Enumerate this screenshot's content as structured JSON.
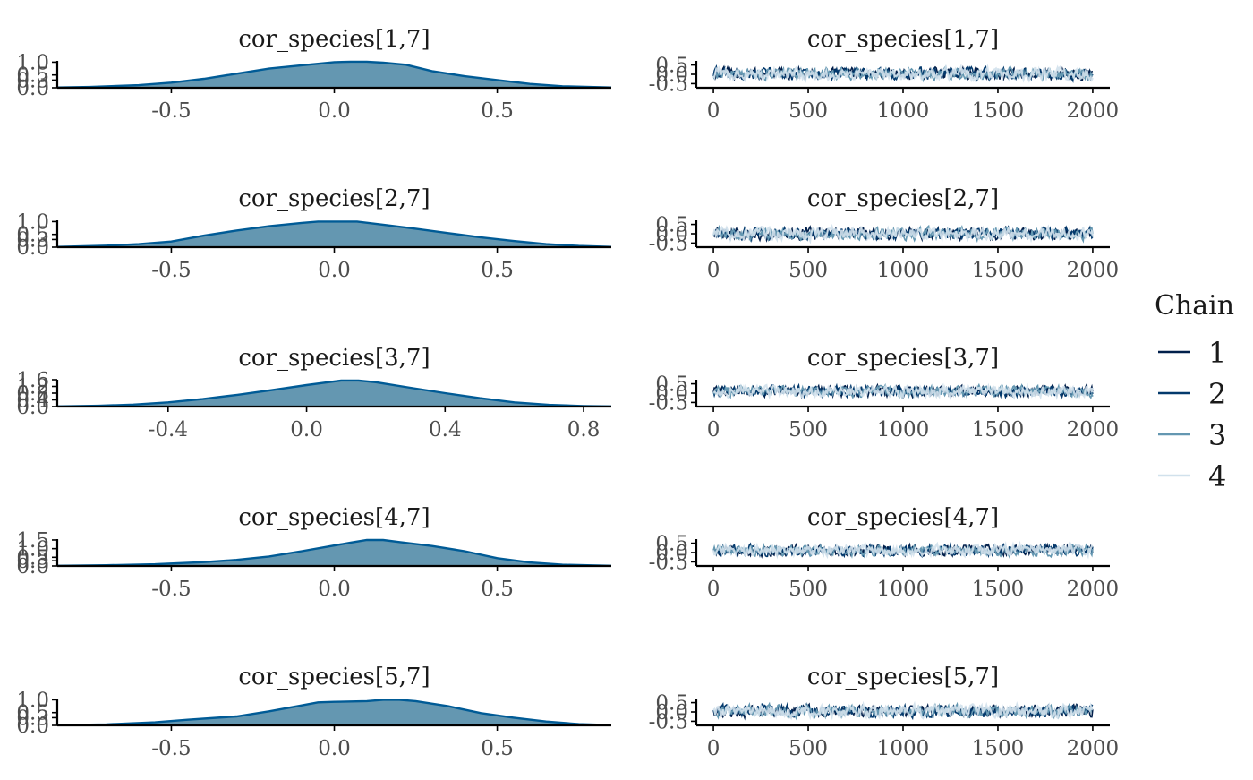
{
  "chart_data": [
    {
      "type": "area",
      "title": "cor_species[1,7]",
      "xlim": [
        -0.85,
        0.85
      ],
      "x_ticks": [
        -0.5,
        0.0,
        0.5
      ],
      "x_tick_labels": [
        "-0.5",
        "0.0",
        "0.5"
      ],
      "ylim": [
        0,
        1.05
      ],
      "y_ticks": [
        0.0,
        0.3,
        0.5,
        1.0
      ],
      "y_tick_labels": [
        "0.0",
        "0.3",
        "0.5",
        "1.0"
      ],
      "x": [
        -0.85,
        -0.75,
        -0.6,
        -0.5,
        -0.4,
        -0.3,
        -0.2,
        -0.1,
        0.0,
        0.05,
        0.1,
        0.15,
        0.22,
        0.3,
        0.4,
        0.5,
        0.6,
        0.7,
        0.85
      ],
      "y": [
        0.01,
        0.03,
        0.1,
        0.2,
        0.35,
        0.55,
        0.75,
        0.88,
        1.0,
        1.02,
        1.02,
        0.98,
        0.9,
        0.65,
        0.45,
        0.3,
        0.15,
        0.06,
        0.01
      ]
    },
    {
      "type": "line",
      "title": "cor_species[1,7]",
      "xlim": [
        -90,
        2090
      ],
      "x_ticks": [
        0,
        500,
        1000,
        1500,
        2000
      ],
      "x_tick_labels": [
        "0",
        "500",
        "1000",
        "1500",
        "2000"
      ],
      "ylim": [
        -0.72,
        0.72
      ],
      "y_ticks": [
        -0.5,
        0.0,
        0.5
      ],
      "y_tick_labels": [
        "-0.5",
        "0.0",
        "0.5"
      ],
      "n_iter": 2000,
      "series_mean": 0.03,
      "series_spread": 0.5
    },
    {
      "type": "area",
      "title": "cor_species[2,7]",
      "xlim": [
        -0.85,
        0.85
      ],
      "x_ticks": [
        -0.5,
        0.0,
        0.5
      ],
      "x_tick_labels": [
        "-0.5",
        "0.0",
        "0.5"
      ],
      "ylim": [
        0,
        1.05
      ],
      "y_ticks": [
        0.0,
        0.3,
        0.5,
        1.0
      ],
      "y_tick_labels": [
        "0.0",
        "0.3",
        "0.5",
        "1.0"
      ],
      "x": [
        -0.85,
        -0.7,
        -0.6,
        -0.5,
        -0.4,
        -0.3,
        -0.2,
        -0.1,
        -0.05,
        0.0,
        0.07,
        0.15,
        0.25,
        0.35,
        0.45,
        0.55,
        0.65,
        0.75,
        0.85
      ],
      "y": [
        0.01,
        0.06,
        0.12,
        0.22,
        0.45,
        0.65,
        0.82,
        0.95,
        1.0,
        1.0,
        1.0,
        0.88,
        0.72,
        0.55,
        0.38,
        0.24,
        0.12,
        0.05,
        0.01
      ]
    },
    {
      "type": "line",
      "title": "cor_species[2,7]",
      "xlim": [
        -90,
        2090
      ],
      "x_ticks": [
        0,
        500,
        1000,
        1500,
        2000
      ],
      "x_tick_labels": [
        "0",
        "500",
        "1000",
        "1500",
        "2000"
      ],
      "ylim": [
        -0.72,
        0.72
      ],
      "y_ticks": [
        -0.5,
        0.0,
        0.5
      ],
      "y_tick_labels": [
        "-0.5",
        "0.0",
        "0.5"
      ],
      "n_iter": 2000,
      "series_mean": 0.0,
      "series_spread": 0.5
    },
    {
      "type": "area",
      "title": "cor_species[3,7]",
      "xlim": [
        -0.72,
        0.88
      ],
      "x_ticks": [
        -0.4,
        0.0,
        0.4,
        0.8
      ],
      "x_tick_labels": [
        "-0.4",
        "0.0",
        "0.4",
        "0.8"
      ],
      "ylim": [
        0,
        1.6
      ],
      "y_ticks": [
        0.0,
        0.4,
        0.8,
        1.2,
        1.6
      ],
      "y_tick_labels": [
        "0.0",
        "0.4",
        "0.8",
        "1.2",
        "1.6"
      ],
      "x": [
        -0.72,
        -0.6,
        -0.5,
        -0.4,
        -0.3,
        -0.2,
        -0.1,
        0.0,
        0.05,
        0.1,
        0.15,
        0.2,
        0.3,
        0.4,
        0.5,
        0.6,
        0.7,
        0.8,
        0.88
      ],
      "y": [
        0.01,
        0.05,
        0.12,
        0.25,
        0.45,
        0.7,
        0.98,
        1.28,
        1.42,
        1.55,
        1.55,
        1.45,
        1.12,
        0.8,
        0.5,
        0.25,
        0.1,
        0.03,
        0.01
      ]
    },
    {
      "type": "line",
      "title": "cor_species[3,7]",
      "xlim": [
        -90,
        2090
      ],
      "x_ticks": [
        0,
        500,
        1000,
        1500,
        2000
      ],
      "x_tick_labels": [
        "0",
        "500",
        "1000",
        "1500",
        "2000"
      ],
      "ylim": [
        -0.72,
        0.72
      ],
      "y_ticks": [
        -0.5,
        0.0,
        0.5
      ],
      "y_tick_labels": [
        "-0.5",
        "0.0",
        "0.5"
      ],
      "n_iter": 2000,
      "series_mean": 0.1,
      "series_spread": 0.45
    },
    {
      "type": "area",
      "title": "cor_species[4,7]",
      "xlim": [
        -0.85,
        0.85
      ],
      "x_ticks": [
        -0.5,
        0.0,
        0.5
      ],
      "x_tick_labels": [
        "-0.5",
        "0.0",
        "0.5"
      ],
      "ylim": [
        0,
        1.55
      ],
      "y_ticks": [
        0.0,
        0.3,
        0.5,
        1.0,
        1.5
      ],
      "y_tick_labels": [
        "0.0",
        "0.3",
        "0.5",
        "1.0",
        "1.5"
      ],
      "x": [
        -0.85,
        -0.7,
        -0.55,
        -0.4,
        -0.3,
        -0.2,
        -0.1,
        -0.03,
        0.05,
        0.1,
        0.15,
        0.2,
        0.3,
        0.4,
        0.5,
        0.6,
        0.7,
        0.85
      ],
      "y": [
        0.01,
        0.04,
        0.1,
        0.22,
        0.35,
        0.55,
        0.85,
        1.08,
        1.35,
        1.5,
        1.5,
        1.38,
        1.15,
        0.85,
        0.45,
        0.2,
        0.07,
        0.01
      ]
    },
    {
      "type": "line",
      "title": "cor_species[4,7]",
      "xlim": [
        -90,
        2090
      ],
      "x_ticks": [
        0,
        500,
        1000,
        1500,
        2000
      ],
      "x_tick_labels": [
        "0",
        "500",
        "1000",
        "1500",
        "2000"
      ],
      "ylim": [
        -0.72,
        0.72
      ],
      "y_ticks": [
        -0.5,
        0.0,
        0.5
      ],
      "y_tick_labels": [
        "-0.5",
        "0.0",
        "0.5"
      ],
      "n_iter": 2000,
      "series_mean": 0.12,
      "series_spread": 0.45
    },
    {
      "type": "area",
      "title": "cor_species[5,7]",
      "xlim": [
        -0.85,
        0.85
      ],
      "x_ticks": [
        -0.5,
        0.0,
        0.5
      ],
      "x_tick_labels": [
        "-0.5",
        "0.0",
        "0.5"
      ],
      "ylim": [
        0,
        1.05
      ],
      "y_ticks": [
        0.0,
        0.3,
        0.5,
        1.0
      ],
      "y_tick_labels": [
        "0.0",
        "0.3",
        "0.5",
        "1.0"
      ],
      "x": [
        -0.85,
        -0.7,
        -0.55,
        -0.45,
        -0.3,
        -0.2,
        -0.1,
        -0.05,
        0.0,
        0.1,
        0.15,
        0.2,
        0.25,
        0.35,
        0.45,
        0.55,
        0.65,
        0.75,
        0.85
      ],
      "y": [
        0.01,
        0.04,
        0.12,
        0.22,
        0.35,
        0.55,
        0.78,
        0.9,
        0.92,
        0.95,
        1.0,
        1.0,
        0.95,
        0.75,
        0.48,
        0.3,
        0.15,
        0.05,
        0.01
      ]
    },
    {
      "type": "line",
      "title": "cor_species[5,7]",
      "xlim": [
        -90,
        2090
      ],
      "x_ticks": [
        0,
        500,
        1000,
        1500,
        2000
      ],
      "x_tick_labels": [
        "0",
        "500",
        "1000",
        "1500",
        "2000"
      ],
      "ylim": [
        -0.72,
        0.72
      ],
      "y_ticks": [
        -0.5,
        0.0,
        0.5
      ],
      "y_tick_labels": [
        "-0.5",
        "0.0",
        "0.5"
      ],
      "n_iter": 2000,
      "series_mean": 0.05,
      "series_spread": 0.5
    }
  ],
  "legend": {
    "title": "Chain",
    "items": [
      {
        "label": "1",
        "color": "#011f4b"
      },
      {
        "label": "2",
        "color": "#03396c"
      },
      {
        "label": "3",
        "color": "#6497b1"
      },
      {
        "label": "4",
        "color": "#d1e1ec"
      }
    ]
  },
  "colors": {
    "density_fill": "#6497b1",
    "density_line": "#005b96",
    "axis": "#000000"
  }
}
